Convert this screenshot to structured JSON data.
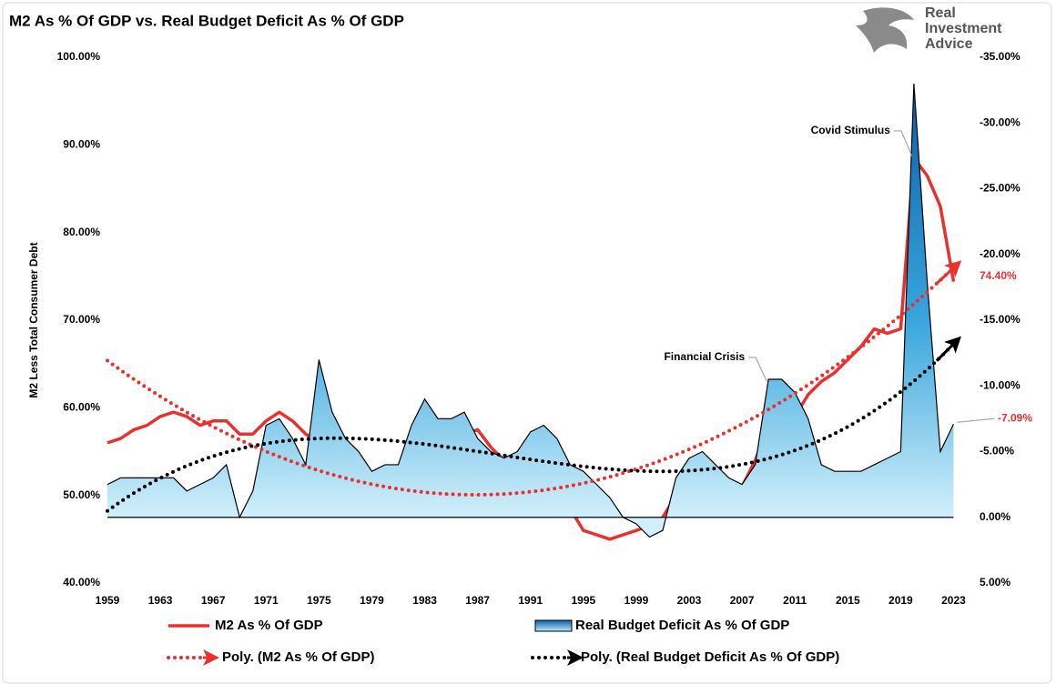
{
  "logo_text": [
    "Real",
    "Investment",
    "Advice"
  ],
  "chart_data": {
    "type": "line",
    "title": "M2 As % Of GDP vs. Real Budget Deficit As % Of GDP",
    "y_label": "M2 Less Total Consumer Debt",
    "x": [
      1959,
      1960,
      1961,
      1962,
      1963,
      1964,
      1965,
      1966,
      1967,
      1968,
      1969,
      1970,
      1971,
      1972,
      1973,
      1974,
      1975,
      1976,
      1977,
      1978,
      1979,
      1980,
      1981,
      1982,
      1983,
      1984,
      1985,
      1986,
      1987,
      1988,
      1989,
      1990,
      1991,
      1992,
      1993,
      1994,
      1995,
      1996,
      1997,
      1998,
      1999,
      2000,
      2001,
      2002,
      2003,
      2004,
      2005,
      2006,
      2007,
      2008,
      2009,
      2010,
      2011,
      2012,
      2013,
      2014,
      2015,
      2016,
      2017,
      2018,
      2019,
      2020,
      2021,
      2022,
      2023
    ],
    "xlim": [
      1959,
      2024
    ],
    "xticks": [
      1959,
      1963,
      1967,
      1971,
      1975,
      1979,
      1983,
      1987,
      1991,
      1995,
      1999,
      2003,
      2007,
      2011,
      2015,
      2019,
      2023
    ],
    "ylim": [
      40,
      100
    ],
    "yticks": [
      {
        "value": 40,
        "label": "40.00%"
      },
      {
        "value": 50,
        "label": "50.00%"
      },
      {
        "value": 60,
        "label": "60.00%"
      },
      {
        "value": 70,
        "label": "70.00%"
      },
      {
        "value": 80,
        "label": "80.00%"
      },
      {
        "value": 90,
        "label": "90.00%"
      },
      {
        "value": 100,
        "label": "100.00%"
      }
    ],
    "y2lim": [
      5,
      -35
    ],
    "y2ticks": [
      {
        "value": 5,
        "label": "5.00%"
      },
      {
        "value": 0,
        "label": "0.00%"
      },
      {
        "value": -5,
        "label": "-5.00%"
      },
      {
        "value": -10,
        "label": "-10.00%"
      },
      {
        "value": -15,
        "label": "-15.00%"
      },
      {
        "value": -20,
        "label": "-20.00%"
      },
      {
        "value": -25,
        "label": "-25.00%"
      },
      {
        "value": -30,
        "label": "-30.00%"
      },
      {
        "value": -35,
        "label": "-35.00%"
      }
    ],
    "series": [
      {
        "name": "M2 As % Of GDP",
        "type": "line",
        "color": "#e8312f",
        "values": [
          56,
          56.5,
          57.5,
          58,
          59,
          59.5,
          59,
          58,
          58.5,
          58.5,
          57,
          57,
          58.5,
          59.5,
          58.5,
          57,
          56,
          57,
          56,
          54,
          52.5,
          52.5,
          52,
          54.5,
          56.5,
          54.5,
          55.5,
          57,
          57.5,
          55.5,
          54,
          54.5,
          55,
          54,
          51.5,
          48.5,
          46,
          45.5,
          45,
          45.5,
          46,
          46.5,
          47.5,
          50,
          52,
          51,
          50,
          50,
          51,
          54,
          58,
          56.5,
          59,
          61.5,
          63,
          64,
          65.5,
          67,
          69,
          68.5,
          69,
          88.5,
          86.5,
          83,
          74.4
        ],
        "value_labels": [
          null,
          null,
          null,
          null,
          null,
          null,
          null,
          null,
          null,
          null,
          null,
          null,
          null,
          null,
          null,
          null,
          null,
          null,
          null,
          null,
          null,
          null,
          null,
          null,
          null,
          null,
          null,
          null,
          null,
          null,
          null,
          null,
          null,
          null,
          null,
          null,
          null,
          null,
          null,
          null,
          null,
          null,
          null,
          null,
          null,
          null,
          null,
          null,
          null,
          null,
          null,
          null,
          null,
          null,
          null,
          null,
          null,
          null,
          null,
          null,
          null,
          null,
          null,
          null,
          "74.40%"
        ]
      },
      {
        "name": "Real Budget Deficit As % Of GDP",
        "type": "area",
        "axis": "y2",
        "color": "#2f9bd6",
        "values": [
          -2.5,
          -3,
          -3,
          -3,
          -3,
          -3,
          -2,
          -2.5,
          -3,
          -4,
          0,
          -2,
          -7,
          -7.5,
          -6,
          -4,
          -12,
          -8,
          -6,
          -5,
          -3.5,
          -4,
          -4,
          -7,
          -9,
          -7.5,
          -7.5,
          -8,
          -6,
          -5,
          -4.5,
          -5,
          -6.5,
          -7,
          -6,
          -4,
          -3.5,
          -2.5,
          -1.5,
          0,
          0.5,
          1.5,
          1,
          -3,
          -4.5,
          -5,
          -4,
          -3,
          -2.5,
          -4,
          -10.5,
          -10.5,
          -9.5,
          -7.5,
          -4,
          -3.5,
          -3.5,
          -3.5,
          -4,
          -4.5,
          -5,
          -33,
          -18,
          -5,
          -7.09
        ],
        "value_labels": [
          null,
          null,
          null,
          null,
          null,
          null,
          null,
          null,
          null,
          null,
          null,
          null,
          null,
          null,
          null,
          null,
          null,
          null,
          null,
          null,
          null,
          null,
          null,
          null,
          null,
          null,
          null,
          null,
          null,
          null,
          null,
          null,
          null,
          null,
          null,
          null,
          null,
          null,
          null,
          null,
          null,
          null,
          null,
          null,
          null,
          null,
          null,
          null,
          null,
          null,
          null,
          null,
          null,
          null,
          null,
          null,
          null,
          null,
          null,
          null,
          null,
          null,
          null,
          null,
          "-7.09%"
        ]
      }
    ],
    "trendlines": [
      {
        "name": "Poly. (M2 As % Of GDP)",
        "of": 0,
        "order": 2,
        "color": "#e8312f"
      },
      {
        "name": "Poly. (Real Budget Deficit As % Of GDP)",
        "of": 1,
        "order": 3,
        "color": "#000000"
      }
    ],
    "annotations": [
      {
        "text": "Covid Stimulus",
        "x": 2020,
        "series": 1
      },
      {
        "text": "Financial Crisis",
        "x": 2009,
        "series": 1
      }
    ]
  }
}
